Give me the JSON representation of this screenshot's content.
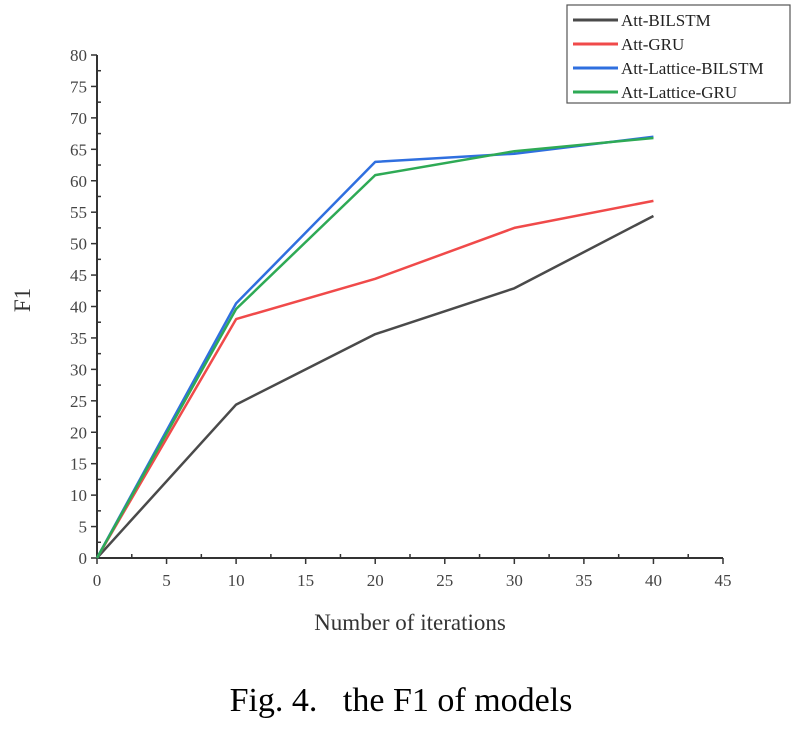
{
  "chart_data": {
    "type": "line",
    "title": "",
    "xlabel": "Number of iterations",
    "ylabel": "F1",
    "xlim": [
      0,
      45
    ],
    "ylim": [
      0,
      80
    ],
    "xticks": [
      0,
      5,
      10,
      15,
      20,
      25,
      30,
      35,
      40,
      45
    ],
    "yticks": [
      0,
      5,
      10,
      15,
      20,
      25,
      30,
      35,
      40,
      45,
      50,
      55,
      60,
      65,
      70,
      75,
      80
    ],
    "grid": false,
    "legend_position": "top-right",
    "x": [
      0,
      10,
      20,
      30,
      40
    ],
    "series": [
      {
        "name": "Att-BILSTM",
        "color": "#4a4a4a",
        "values": [
          0,
          24.4,
          35.6,
          42.9,
          54.4
        ]
      },
      {
        "name": "Att-GRU",
        "color": "#f04a4a",
        "values": [
          0,
          38.0,
          44.4,
          52.5,
          56.8
        ]
      },
      {
        "name": "Att-Lattice-BILSTM",
        "color": "#2f6fdf",
        "values": [
          0,
          40.5,
          63.0,
          64.3,
          67.0
        ]
      },
      {
        "name": "Att-Lattice-GRU",
        "color": "#2eaa55",
        "values": [
          0,
          39.6,
          60.9,
          64.7,
          66.8
        ]
      }
    ]
  },
  "caption": "Fig. 4.   the F1 of models"
}
